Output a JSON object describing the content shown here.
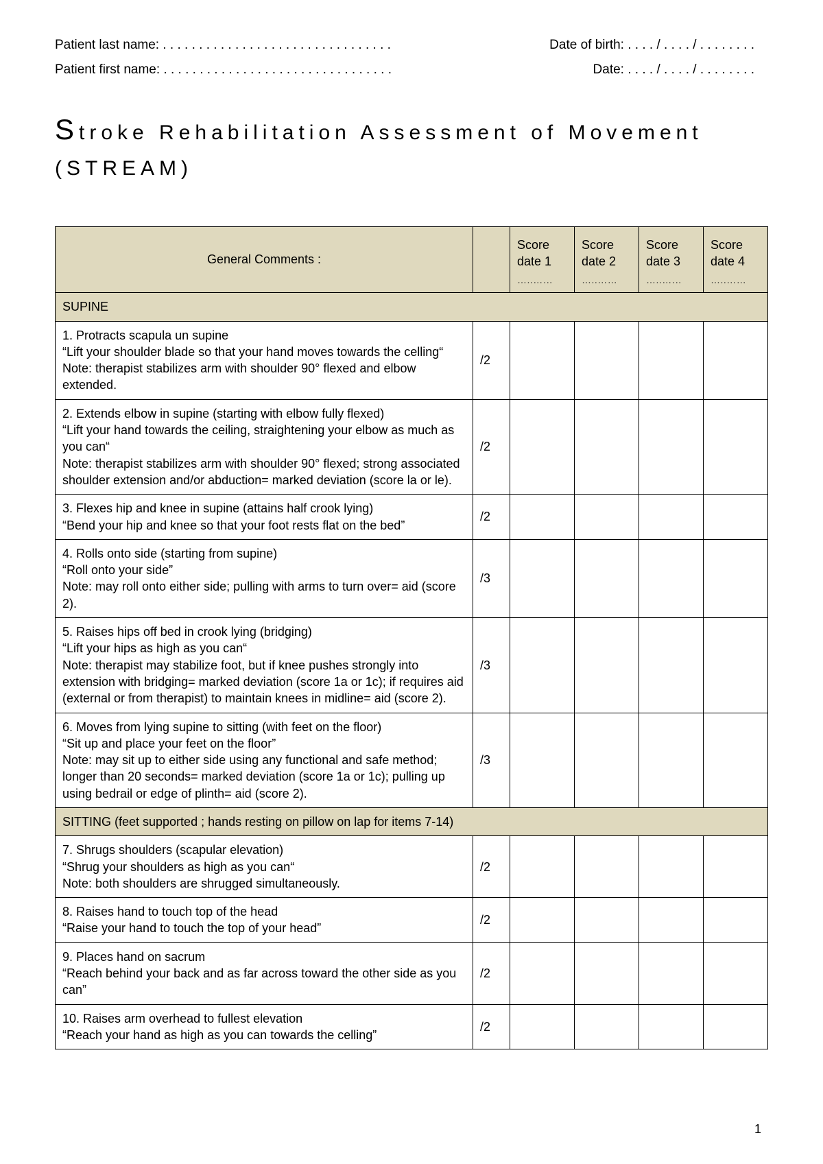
{
  "header": {
    "last_name_label": "Patient last name:  . . . . . . . . . . . . . . . . . . . . . . . . . . . . . . . .",
    "first_name_label": "Patient first name:  . . . . . . . . . . . . . . . . . . . . . . . . . . . . . . . .",
    "dob_label": "Date of birth:  . . . . / . . . . / . . . . . . . .",
    "date_label": "Date:  . . . . / . . . . / . . . . . . . ."
  },
  "title_line1": "troke Rehabilitation Assessment of Movement",
  "title_line2": "(STREAM)",
  "columns": {
    "comments": "General Comments :",
    "score1": "Score date 1",
    "score2": "Score date 2",
    "score3": "Score date 3",
    "score4": "Score date 4",
    "dots": "…..……"
  },
  "sections": {
    "supine": "SUPINE",
    "sitting": "SITTING (feet supported ; hands resting on pillow on lap for items 7-14)"
  },
  "items": [
    {
      "text": "1. Protracts scapula un supine\n“Lift your shoulder blade so that your hand moves towards the celling“\nNote: therapist stabilizes arm with shoulder 90° flexed and elbow extended.",
      "max": "/2"
    },
    {
      "text": "2. Extends elbow in supine (starting with elbow fully flexed)\n“Lift your hand towards the ceiling, straightening your elbow as much as you can“\nNote: therapist stabilizes arm with shoulder 90° flexed; strong associated shoulder extension and/or abduction= marked deviation (score la or le).",
      "max": "/2"
    },
    {
      "text": "3. Flexes hip and knee in supine (attains half crook lying)\n“Bend your hip and knee so that your foot rests flat on the bed”",
      "max": "/2"
    },
    {
      "text": "4. Rolls onto side (starting from supine)\n“Roll onto your side”\nNote: may roll onto either side; pulling with arms to turn over= aid (score 2).",
      "max": "/3"
    },
    {
      "text": "5. Raises hips off bed in crook lying (bridging)\n“Lift your hips as high as you can“\nNote: therapist may stabilize foot, but if knee pushes strongly into extension with bridging= marked deviation (score 1a or 1c); if requires aid (external or from therapist) to maintain knees in midline= aid (score 2).",
      "max": "/3"
    },
    {
      "text": "6. Moves from lying supine to sitting (with feet on the floor)\n“Sit up and place your feet on the floor”\nNote: may sit up to either side using any functional and safe method; longer than 20 seconds= marked deviation (score 1a or 1c); pulling up using bedrail or edge of plinth= aid (score 2).",
      "max": "/3"
    },
    {
      "text": "7. Shrugs shoulders (scapular elevation)\n“Shrug your shoulders as high as you can“\nNote: both shoulders are shrugged simultaneously.",
      "max": "/2"
    },
    {
      "text": "8. Raises hand to touch top of the head\n“Raise your hand to touch the top of your head”",
      "max": "/2"
    },
    {
      "text": "9. Places hand on sacrum\n“Reach behind your back and as far across toward the other side as you can”",
      "max": "/2"
    },
    {
      "text": "10. Raises arm overhead to fullest elevation\n“Reach your hand as high as you can towards the celling”",
      "max": "/2"
    }
  ],
  "page_number": "1"
}
